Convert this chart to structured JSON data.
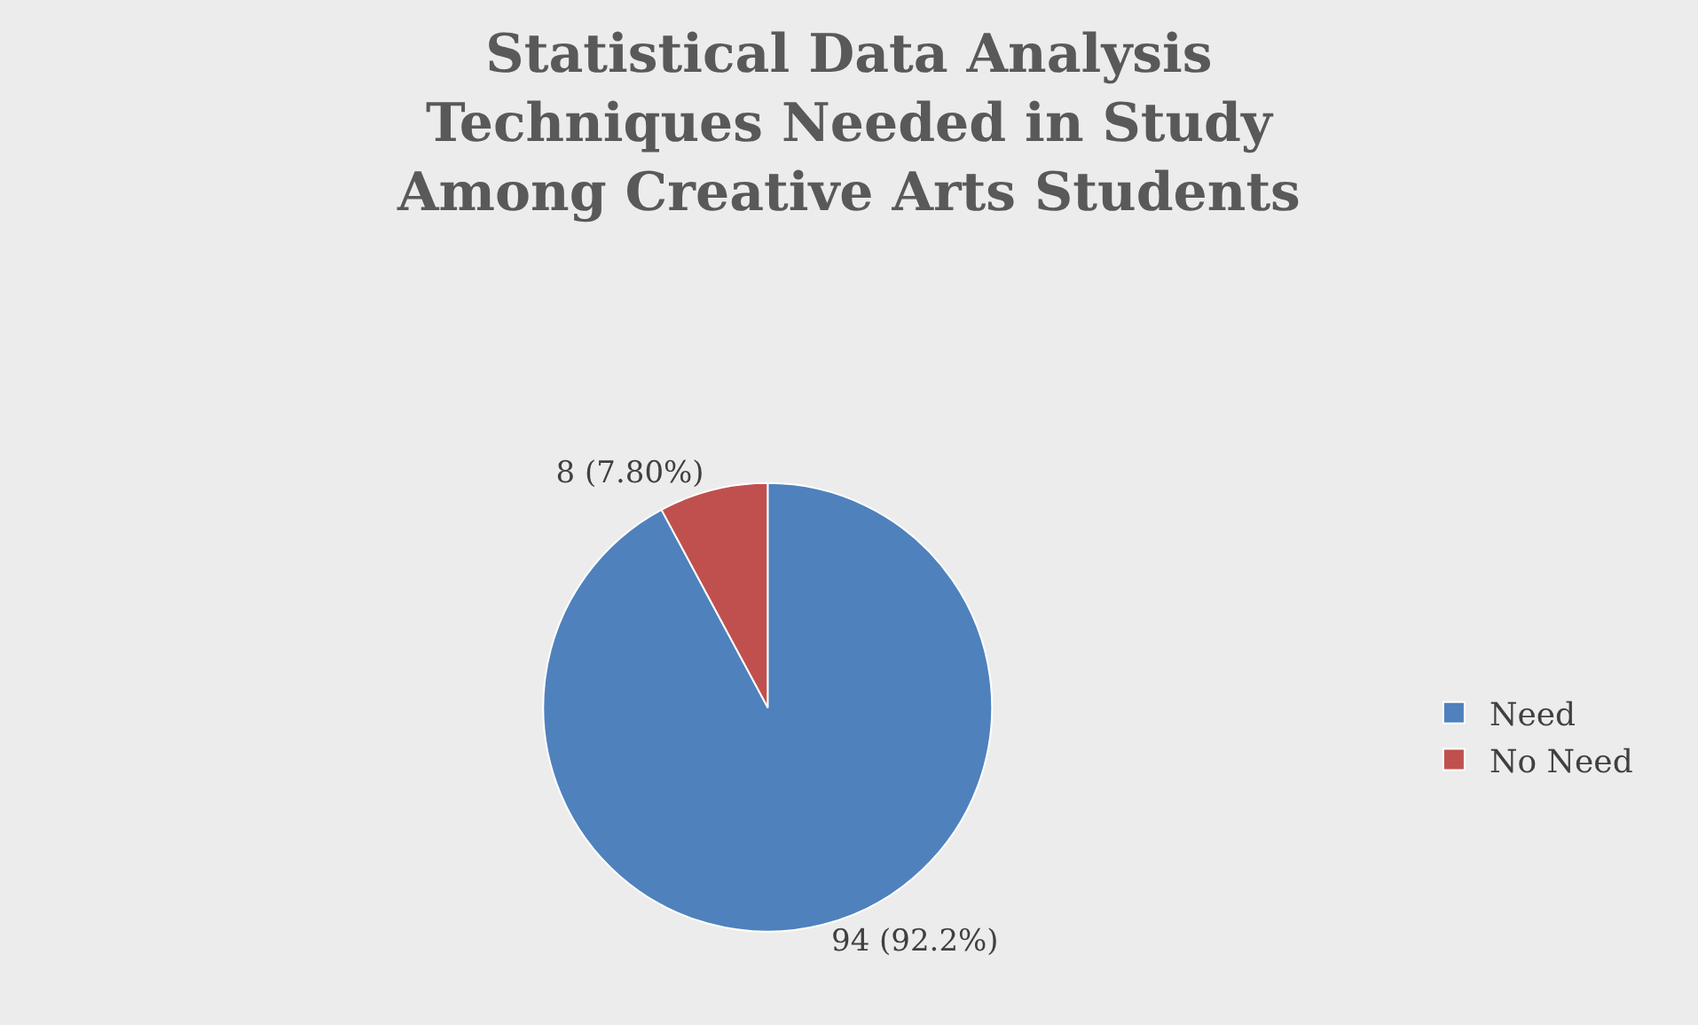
{
  "chart_data": {
    "type": "pie",
    "title": "Statistical Data Analysis Techniques Needed in Study Among Creative Arts Students",
    "categories": [
      "Need",
      "No Need"
    ],
    "values": [
      94,
      8
    ],
    "value_labels": [
      "94 (92.2%)",
      "8 (7.80%)"
    ],
    "colors": [
      "#4f81bd",
      "#c0504d"
    ],
    "legend": "right"
  }
}
